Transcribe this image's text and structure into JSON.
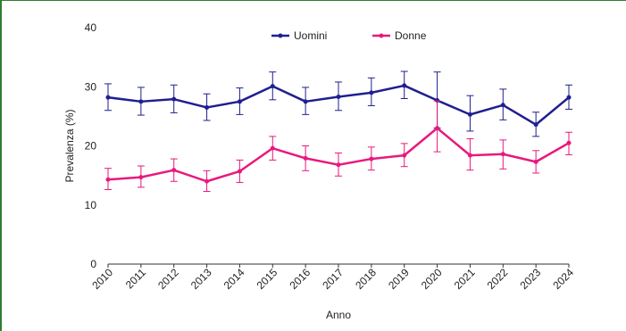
{
  "chart_data": {
    "type": "line",
    "x": [
      2010,
      2011,
      2012,
      2013,
      2014,
      2015,
      2016,
      2017,
      2018,
      2019,
      2020,
      2021,
      2022,
      2023,
      2024
    ],
    "xlabels": [
      "2010",
      "2011",
      "2012",
      "2013",
      "2014",
      "2015",
      "2016",
      "2017",
      "2018",
      "2019",
      "2020",
      "2021",
      "2022",
      "2023",
      "2024"
    ],
    "xlabel": "Anno",
    "ylabel": "Prevalenza (%)",
    "ylim": [
      0,
      40
    ],
    "yticks": [
      0,
      10,
      20,
      30,
      40
    ],
    "grid": false,
    "legend_position": "top-center",
    "series": [
      {
        "name": "Uomini",
        "color": "#1f1f8f",
        "values": [
          28.2,
          27.5,
          27.9,
          26.5,
          27.5,
          30.1,
          27.5,
          28.3,
          29.0,
          30.2,
          27.7,
          25.3,
          26.9,
          23.6,
          28.2
        ],
        "err_low": [
          26.0,
          25.2,
          25.6,
          24.3,
          25.3,
          27.8,
          25.3,
          26.0,
          26.8,
          28.0,
          23.0,
          22.5,
          24.4,
          21.6,
          26.2
        ],
        "err_high": [
          30.5,
          29.9,
          30.3,
          28.8,
          29.8,
          32.5,
          29.9,
          30.8,
          31.5,
          32.6,
          32.5,
          28.5,
          29.6,
          25.7,
          30.3
        ]
      },
      {
        "name": "Donne",
        "color": "#e8197d",
        "values": [
          14.3,
          14.7,
          15.9,
          14.0,
          15.7,
          19.6,
          17.9,
          16.8,
          17.8,
          18.4,
          23.0,
          18.4,
          18.6,
          17.3,
          20.5
        ],
        "err_low": [
          12.6,
          13.0,
          14.0,
          12.3,
          13.8,
          17.6,
          15.8,
          14.9,
          15.9,
          16.5,
          19.0,
          15.9,
          16.1,
          15.4,
          18.5
        ],
        "err_high": [
          16.2,
          16.6,
          17.8,
          15.8,
          17.6,
          21.6,
          20.0,
          18.8,
          19.8,
          20.4,
          27.6,
          21.2,
          21.0,
          19.2,
          22.3
        ]
      }
    ]
  }
}
